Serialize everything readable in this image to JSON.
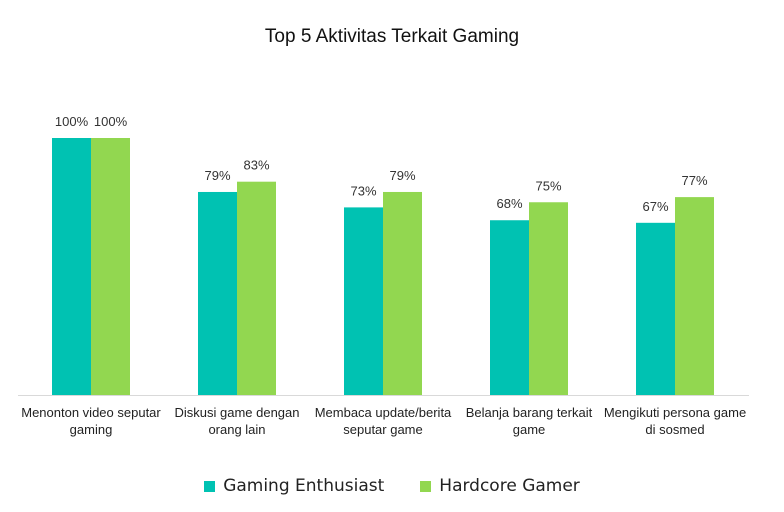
{
  "chart_data": {
    "type": "bar",
    "title": "Top 5 Aktivitas Terkait Gaming",
    "categories": [
      [
        "Menonton video seputar",
        "gaming"
      ],
      [
        "Diskusi game dengan",
        "orang lain"
      ],
      [
        "Membaca update/berita",
        "seputar game"
      ],
      [
        "Belanja barang terkait",
        "game"
      ],
      [
        "Mengikuti persona game",
        "di sosmed"
      ]
    ],
    "series": [
      {
        "name": "Gaming Enthusiast",
        "color": "#00c2b2",
        "values": [
          100,
          79,
          73,
          68,
          67
        ]
      },
      {
        "name": "Hardcore Gamer",
        "color": "#92d750",
        "values": [
          100,
          83,
          79,
          75,
          77
        ]
      }
    ],
    "value_suffix": "%",
    "ylim": [
      0,
      100
    ],
    "grid": false,
    "legend_position": "bottom"
  }
}
